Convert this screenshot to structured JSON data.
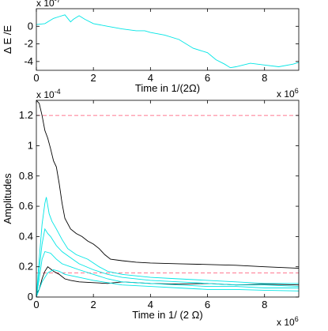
{
  "chart_data": [
    {
      "type": "line",
      "id": "top",
      "xlabel": "Time in 1/(2Ω)",
      "ylabel": "Δ E /E",
      "y_exponent_label": "x 10",
      "y_exponent_power": "-7",
      "x_exponent_label": "",
      "xlim": [
        0,
        9.2
      ],
      "ylim": [
        -5,
        2
      ],
      "xticks": [
        0,
        2,
        4,
        6,
        8
      ],
      "yticks": [
        0,
        -2,
        -4
      ],
      "xtick_labels": [
        "0",
        "2",
        "4",
        "6",
        "8"
      ],
      "ytick_labels": [
        "0",
        "-2",
        "-4"
      ],
      "series": [
        {
          "color": "#00e5e5",
          "x": [
            0,
            0.3,
            0.6,
            0.8,
            1.0,
            1.2,
            1.3,
            1.5,
            1.7,
            2.0,
            2.5,
            3.0,
            3.5,
            3.8,
            4.0,
            4.5,
            5.0,
            5.5,
            6.0,
            6.3,
            6.6,
            6.8,
            7.0,
            7.5,
            8.0,
            8.5,
            9.0,
            9.2
          ],
          "y": [
            0.2,
            0.3,
            0.9,
            1.1,
            1.3,
            0.5,
            0.8,
            1.2,
            0.8,
            0.3,
            0.0,
            -0.3,
            -0.5,
            -0.5,
            -0.7,
            -1.0,
            -1.5,
            -2.5,
            -3.0,
            -3.8,
            -4.3,
            -4.7,
            -4.6,
            -4.2,
            -4.4,
            -4.6,
            -4.3,
            -4.1
          ]
        }
      ]
    },
    {
      "type": "line",
      "id": "bottom",
      "xlabel": "Time in 1/ (2 Ω)",
      "ylabel": "Amplitudes",
      "y_exponent_label": "x 10",
      "y_exponent_power": "-4",
      "x_exponent_label": "x 10",
      "x_exponent_power": "6",
      "xlim": [
        0,
        9.2
      ],
      "ylim": [
        0,
        1.3
      ],
      "xticks": [
        0,
        2,
        4,
        6,
        8
      ],
      "yticks": [
        0,
        0.2,
        0.4,
        0.6,
        0.8,
        1,
        1.2
      ],
      "xtick_labels": [
        "0",
        "2",
        "4",
        "6",
        "8"
      ],
      "ytick_labels": [
        "0",
        "0.2",
        "0.4",
        "0.6",
        "0.8",
        "1",
        "1.2"
      ],
      "reference_lines": [
        {
          "y": 1.2,
          "color": "#ff4d6d",
          "style": "dashed"
        },
        {
          "y": 0.16,
          "color": "#ff4d6d",
          "style": "dashed"
        }
      ],
      "series": [
        {
          "color": "#000000",
          "x": [
            0,
            0.1,
            0.2,
            0.3,
            0.4,
            0.5,
            0.6,
            0.7,
            0.8,
            0.9,
            1.0,
            1.2,
            1.4,
            1.6,
            1.8,
            2.0,
            2.2,
            2.4,
            2.6,
            3.0,
            3.5,
            4.0,
            5.0,
            6.0,
            7.0,
            8.0,
            9.2
          ],
          "y": [
            1.3,
            1.28,
            1.2,
            1.1,
            1.05,
            0.98,
            0.9,
            0.86,
            0.75,
            0.62,
            0.52,
            0.45,
            0.42,
            0.4,
            0.37,
            0.35,
            0.32,
            0.28,
            0.25,
            0.24,
            0.23,
            0.225,
            0.22,
            0.215,
            0.21,
            0.2,
            0.19
          ]
        },
        {
          "color": "#000000",
          "x": [
            0,
            0.1,
            0.2,
            0.3,
            0.4,
            0.6,
            0.8,
            1.0,
            1.2,
            1.5,
            2.0,
            2.5,
            3.0,
            4.0,
            5.0,
            6.0,
            7.0,
            8.0,
            9.2
          ],
          "y": [
            0.02,
            0.05,
            0.12,
            0.17,
            0.2,
            0.17,
            0.15,
            0.12,
            0.11,
            0.1,
            0.095,
            0.09,
            0.1,
            0.09,
            0.085,
            0.09,
            0.08,
            0.085,
            0.08
          ]
        },
        {
          "color": "#00e5e5",
          "x": [
            0,
            0.1,
            0.2,
            0.3,
            0.35,
            0.45,
            0.55,
            0.7,
            0.9,
            1.1,
            1.4,
            1.8,
            2.2,
            2.5,
            3.0,
            4.0,
            5.0,
            6.0,
            7.0,
            8.0,
            9.2
          ],
          "y": [
            0.0,
            0.25,
            0.48,
            0.62,
            0.66,
            0.55,
            0.5,
            0.45,
            0.38,
            0.32,
            0.28,
            0.25,
            0.2,
            0.17,
            0.15,
            0.13,
            0.12,
            0.11,
            0.1,
            0.09,
            0.09
          ]
        },
        {
          "color": "#00e5e5",
          "x": [
            0,
            0.1,
            0.2,
            0.3,
            0.4,
            0.5,
            0.7,
            0.9,
            1.2,
            1.5,
            2.0,
            2.5,
            3.0,
            4.0,
            5.0,
            6.0,
            7.0,
            8.0,
            9.2
          ],
          "y": [
            0.0,
            0.18,
            0.35,
            0.45,
            0.42,
            0.4,
            0.34,
            0.3,
            0.26,
            0.22,
            0.18,
            0.15,
            0.13,
            0.11,
            0.1,
            0.09,
            0.08,
            0.08,
            0.07
          ]
        },
        {
          "color": "#00e5e5",
          "x": [
            0,
            0.1,
            0.2,
            0.3,
            0.5,
            0.7,
            0.9,
            1.2,
            1.5,
            2.0,
            2.5,
            3.0,
            4.0,
            5.0,
            6.0,
            7.0,
            8.0,
            9.2
          ],
          "y": [
            0.0,
            0.12,
            0.25,
            0.3,
            0.29,
            0.25,
            0.22,
            0.2,
            0.18,
            0.15,
            0.12,
            0.1,
            0.09,
            0.08,
            0.07,
            0.07,
            0.06,
            0.06
          ]
        },
        {
          "color": "#00e5e5",
          "x": [
            0,
            0.2,
            0.4,
            0.6,
            0.8,
            1.0,
            1.5,
            2.0,
            3.0,
            4.0,
            5.0,
            6.0,
            7.0,
            8.0,
            9.2
          ],
          "y": [
            0.0,
            0.1,
            0.16,
            0.18,
            0.17,
            0.15,
            0.13,
            0.11,
            0.08,
            0.07,
            0.06,
            0.05,
            0.05,
            0.045,
            0.04
          ]
        }
      ]
    }
  ]
}
